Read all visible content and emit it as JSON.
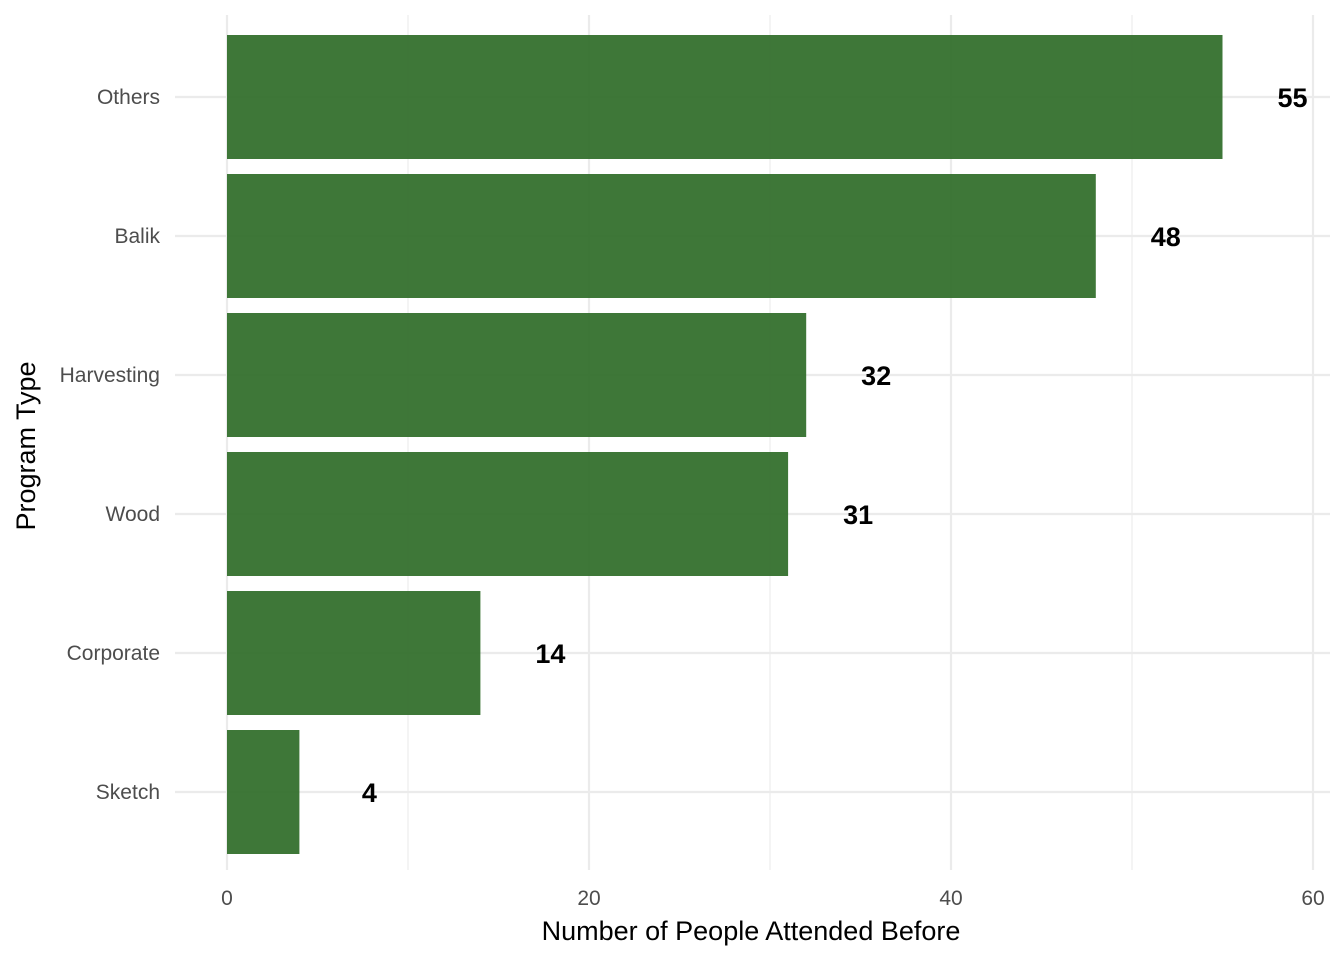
{
  "chart_data": {
    "type": "bar",
    "orientation": "horizontal",
    "categories": [
      "Others",
      "Balik",
      "Harvesting",
      "Wood",
      "Corporate",
      "Sketch"
    ],
    "values": [
      55,
      48,
      32,
      31,
      14,
      4
    ],
    "data_labels": [
      "55",
      "48",
      "32",
      "31",
      "14",
      "4"
    ],
    "xlabel": "Number of People Attended Before",
    "ylabel": "Program Type",
    "xlim": [
      0,
      60
    ],
    "x_ticks": [
      0,
      20,
      40,
      60
    ],
    "x_tick_labels": [
      "0",
      "20",
      "40",
      "60"
    ],
    "grid": true,
    "colors": {
      "bar": "#2E6B27",
      "grid": "#EBEBEB"
    }
  }
}
